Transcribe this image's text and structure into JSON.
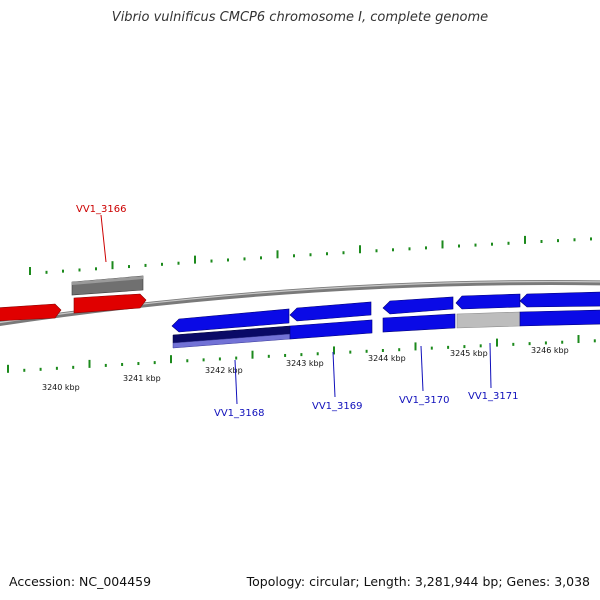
{
  "title": "Vibrio vulnificus CMCP6 chromosome I, complete genome",
  "footer": {
    "accession": "Accession: NC_004459",
    "stats": "Topology: circular; Length: 3,281,944 bp; Genes: 3,038"
  },
  "colors": {
    "tick": "#1c8a1c",
    "backbone": "#7a7a7a",
    "forward_gene": "#e00000",
    "reverse_gene": "#0a0ae6",
    "pseudo_gene": "#707070",
    "light_gene": "#bdbdbd",
    "dark_gene": "#0a0a66",
    "label_forward": "#cc0000",
    "label_reverse": "#1010bb"
  },
  "scale_labels": [
    "3240 kbp",
    "3241 kbp",
    "3242 kbp",
    "3243 kbp",
    "3244 kbp",
    "3245 kbp",
    "3246 kbp"
  ],
  "genes": [
    {
      "label": "VV1_3166",
      "strand": "forward"
    },
    {
      "label": "VV1_3168",
      "strand": "reverse"
    },
    {
      "label": "VV1_3169",
      "strand": "reverse"
    },
    {
      "label": "VV1_3170",
      "strand": "reverse"
    },
    {
      "label": "VV1_3171",
      "strand": "reverse"
    }
  ]
}
